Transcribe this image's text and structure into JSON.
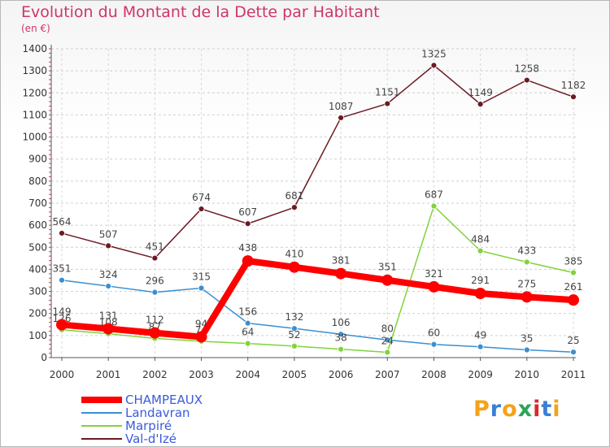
{
  "title": "Evolution du Montant de la Dette par Habitant",
  "unit": "(en €)",
  "logo": {
    "text": "Proxiti",
    "letter_colors": [
      "#f4a21a",
      "#3a7fd6",
      "#f4a21a",
      "#2aa55a",
      "#d62c2c",
      "#3a7fd6",
      "#f4a21a"
    ]
  },
  "chart_data": {
    "type": "line",
    "title": "Evolution du Montant de la Dette par Habitant",
    "ylabel": "(en €)",
    "xlabel": "",
    "categories": [
      "2000",
      "2001",
      "2002",
      "2003",
      "2004",
      "2005",
      "2006",
      "2007",
      "2008",
      "2009",
      "2010",
      "2011"
    ],
    "ylim": [
      0,
      1400
    ],
    "yticks": [
      0,
      100,
      200,
      300,
      400,
      500,
      600,
      700,
      800,
      900,
      1000,
      1100,
      1200,
      1300,
      1400
    ],
    "grid": true,
    "legend_position": "bottom-left",
    "series": [
      {
        "name": "Val-d'Izé",
        "color": "#6b1a22",
        "values": [
          564,
          507,
          451,
          674,
          607,
          681,
          1087,
          1151,
          1325,
          1149,
          1258,
          1182
        ],
        "labels": [
          "564",
          "507",
          "451",
          "674",
          "607",
          "681",
          "1087",
          "1151",
          "1325",
          "1149",
          "1258",
          "1182"
        ]
      },
      {
        "name": "Landavran",
        "color": "#3a8fd0",
        "values": [
          351,
          324,
          296,
          315,
          156,
          132,
          106,
          80,
          60,
          49,
          35,
          25
        ],
        "labels": [
          "351",
          "324",
          "296",
          "315",
          "156",
          "132",
          "106",
          "80",
          "60",
          "49",
          "35",
          "25"
        ]
      },
      {
        "name": "Marpiré",
        "color": "#80d33c",
        "values": [
          126,
          108,
          87,
          74,
          64,
          52,
          38,
          24,
          687,
          484,
          433,
          385
        ],
        "labels": [
          "126",
          "108",
          "87",
          "74",
          "64",
          "52",
          "38",
          "24",
          "687",
          "484",
          "433",
          "385"
        ]
      },
      {
        "name": "CHAMPEAUX",
        "color": "#ff0000",
        "values": [
          149,
          131,
          112,
          94,
          438,
          410,
          381,
          351,
          321,
          291,
          275,
          261
        ],
        "labels": [
          "149",
          "131",
          "112",
          "94",
          "438",
          "410",
          "381",
          "351",
          "321",
          "291",
          "275",
          "261"
        ]
      }
    ]
  },
  "legend": [
    "CHAMPEAUX",
    "Landavran",
    "Marpiré",
    "Val-d'Izé"
  ]
}
